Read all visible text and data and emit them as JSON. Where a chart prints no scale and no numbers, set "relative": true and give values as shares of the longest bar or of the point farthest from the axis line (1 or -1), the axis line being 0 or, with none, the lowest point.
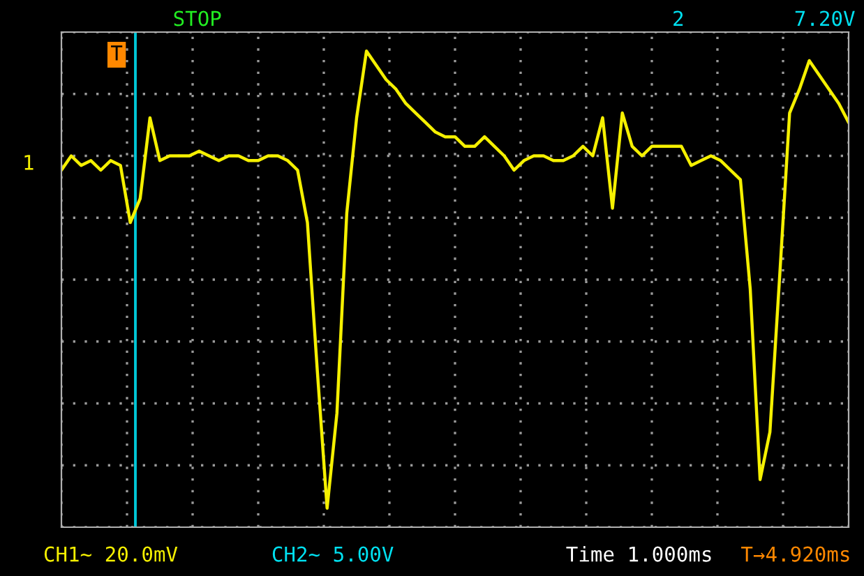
{
  "chart_data": {
    "type": "line",
    "annotations": [
      "STOP",
      "2",
      "7.20V",
      "1",
      "T",
      "CH1~ 20.0mV",
      "CH2~ 5.00V",
      "Time 1.000ms",
      "T→4.920ms"
    ],
    "relative": true,
    "categories": [
      null,
      null,
      null,
      null,
      null,
      null,
      null,
      null,
      null,
      null,
      null,
      null,
      null,
      null,
      null,
      null,
      null,
      null,
      null,
      null,
      null,
      null,
      null,
      null,
      null,
      null,
      null,
      null,
      null,
      null,
      null,
      null,
      null,
      null,
      null,
      null,
      null,
      null,
      null,
      null,
      null,
      null,
      null,
      null,
      null,
      null,
      null,
      null,
      null,
      null,
      null,
      null,
      null,
      null,
      null,
      null,
      null,
      null,
      null,
      null,
      null,
      null,
      null,
      null,
      null,
      null,
      null,
      null,
      null,
      null,
      null,
      null,
      null,
      null,
      null,
      null,
      null,
      null,
      null,
      null,
      null
    ],
    "grid": true,
    "series": [
      {
        "color": "#f5f000",
        "values": [
          0.75,
          0.78,
          0.76,
          0.77,
          0.75,
          0.77,
          0.76,
          0.64,
          0.69,
          0.86,
          0.77,
          0.78,
          0.78,
          0.78,
          0.79,
          0.78,
          0.77,
          0.78,
          0.78,
          0.77,
          0.77,
          0.78,
          0.78,
          0.77,
          0.75,
          0.64,
          0.33,
          0.04,
          0.24,
          0.66,
          0.86,
          1,
          0.97,
          0.94,
          0.92,
          0.89,
          0.87,
          0.85,
          0.83,
          0.82,
          0.82,
          0.8,
          0.8,
          0.82,
          0.8,
          0.78,
          0.75,
          0.77,
          0.78,
          0.78,
          0.77,
          0.77,
          0.78,
          0.8,
          0.78,
          0.86,
          0.67,
          0.87,
          0.8,
          0.78,
          0.8,
          0.8,
          0.8,
          0.8,
          0.76,
          0.77,
          0.78,
          0.77,
          0.75,
          0.73,
          0.5,
          0.1,
          0.2,
          0.53,
          0.87,
          0.92,
          0.98,
          0.95,
          0.92,
          0.89,
          0.85
        ]
      }
    ]
  }
}
